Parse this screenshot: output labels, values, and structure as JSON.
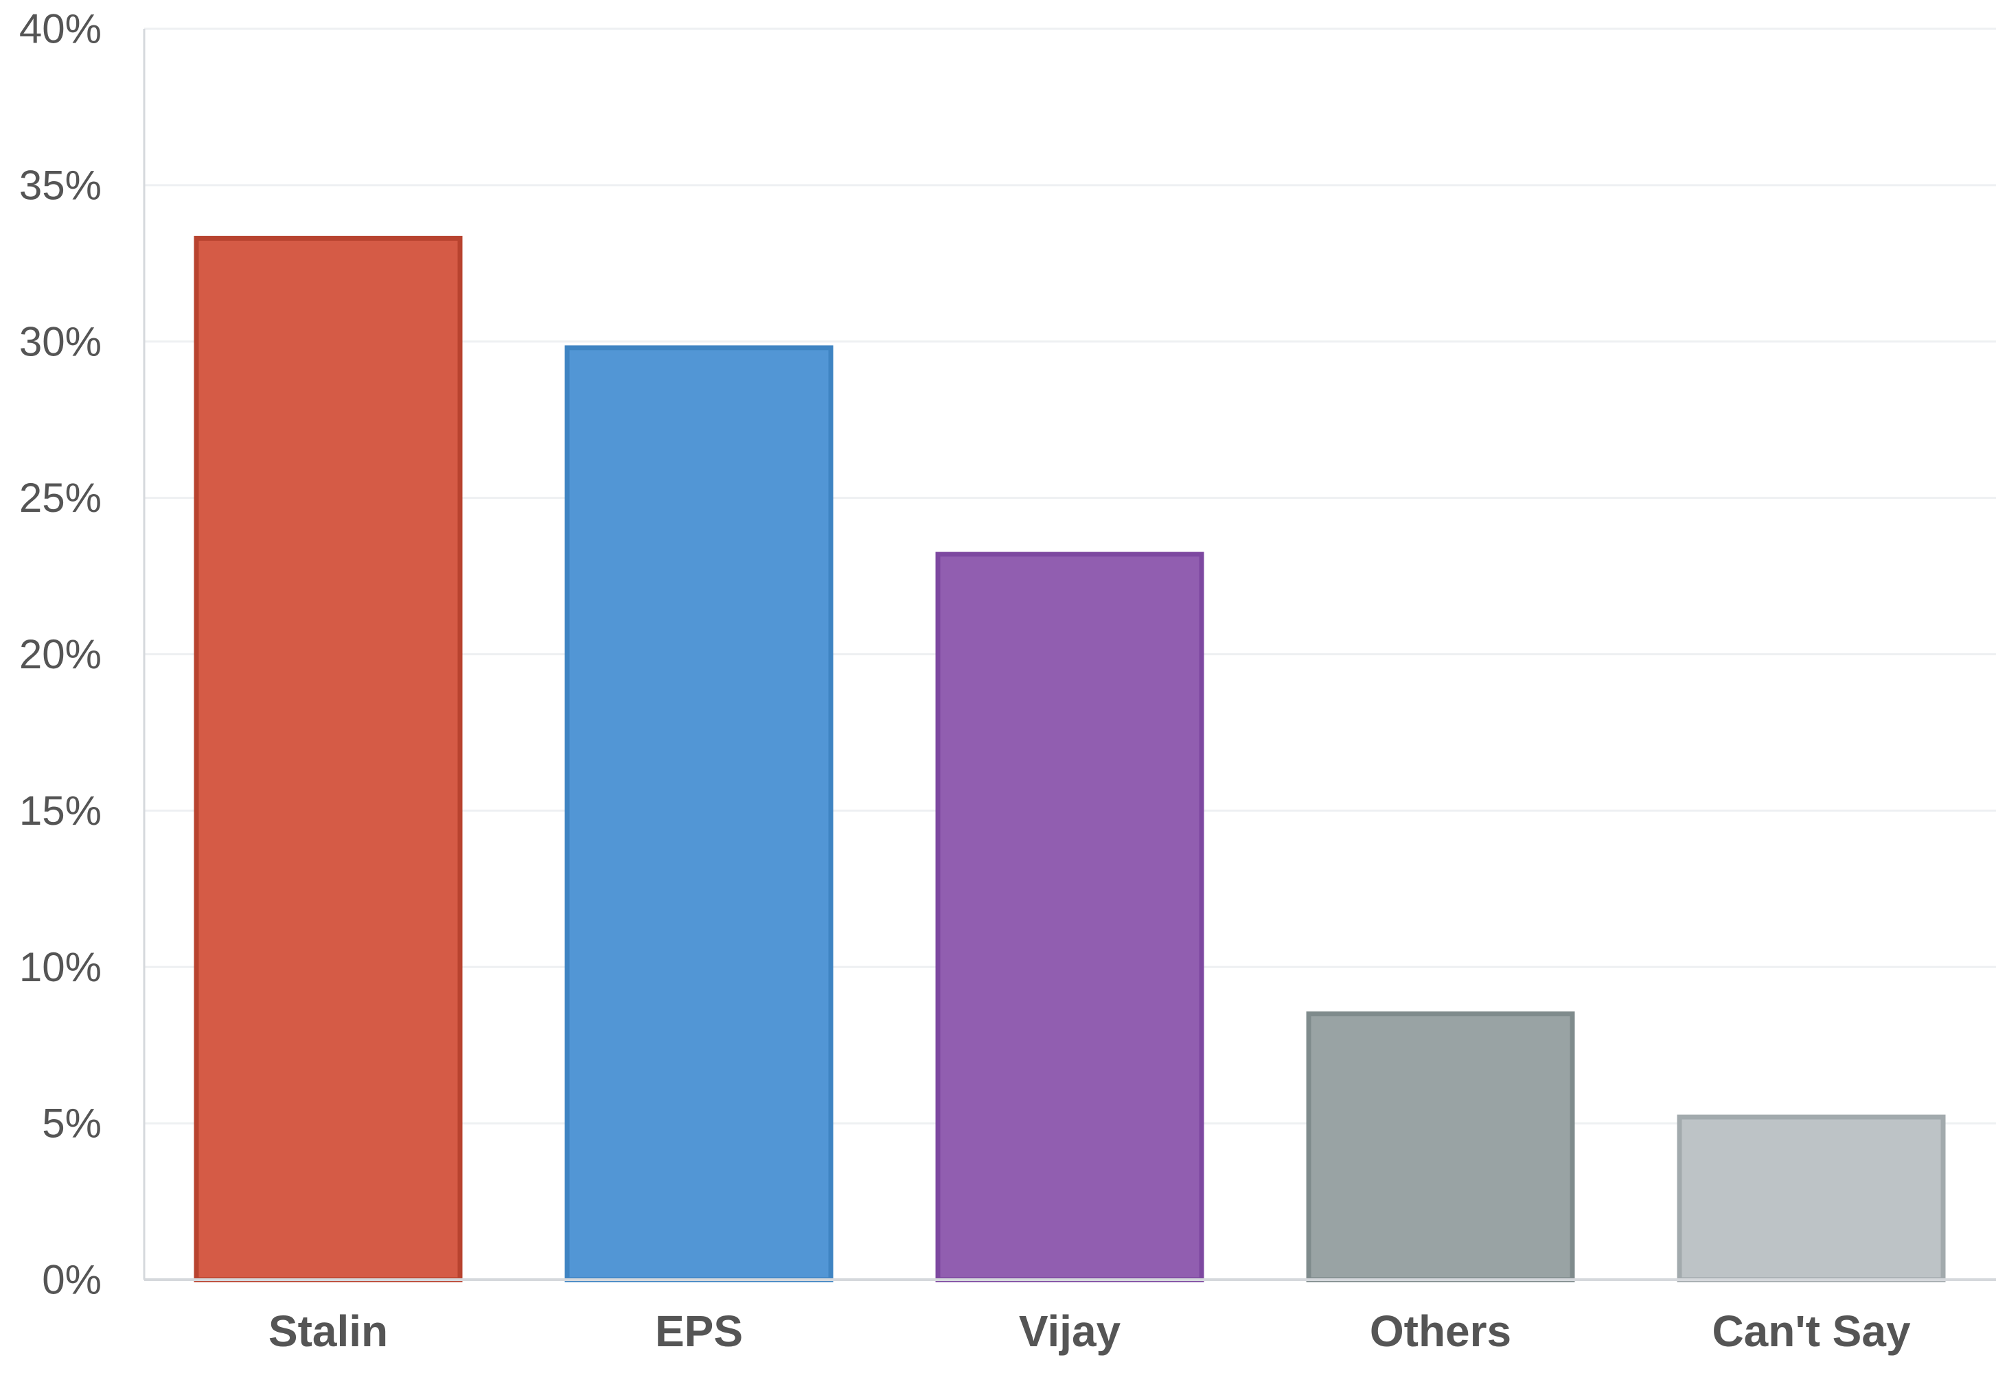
{
  "chart_data": {
    "type": "bar",
    "categories": [
      "Stalin",
      "EPS",
      "Vijay",
      "Others",
      "Can't Say"
    ],
    "values": [
      33.3,
      29.8,
      23.2,
      8.5,
      5.2
    ],
    "ylim": [
      0,
      40
    ],
    "yticks": [
      0,
      5,
      10,
      15,
      20,
      25,
      30,
      35,
      40
    ],
    "ytick_labels": [
      "0%",
      "5%",
      "10%",
      "15%",
      "20%",
      "25%",
      "30%",
      "35%",
      "40%"
    ],
    "title": "",
    "xlabel": "",
    "ylabel": "",
    "grid": true,
    "legend": "none",
    "colors": {
      "fills": [
        "#d55b46",
        "#5296d5",
        "#915eb0",
        "#99a3a4",
        "#bdc3c6"
      ],
      "strokes": [
        "#b8432f",
        "#3f84c2",
        "#7d48a0",
        "#7f8b8c",
        "#a2aaad"
      ],
      "grid": "#eef0f2",
      "axis": "#d5d8dc",
      "text": "#555555"
    }
  }
}
